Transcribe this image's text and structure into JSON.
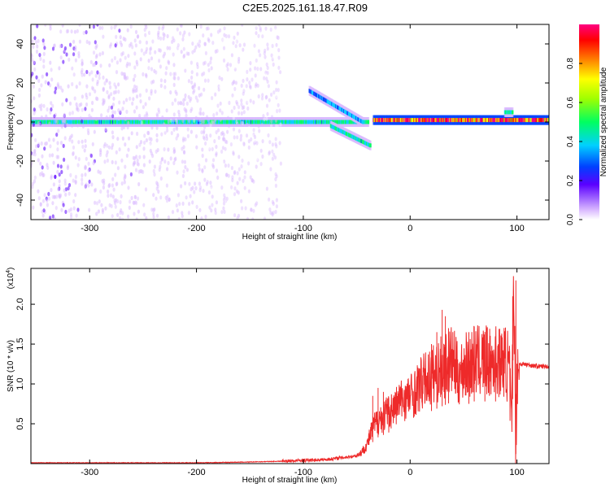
{
  "figure_title": "C2E5.2025.161.18.47.R09",
  "colors": {
    "line": "#ee2a2a",
    "frame": "#000000"
  },
  "chart_data": [
    {
      "type": "heatmap",
      "title": "C2E5.2025.161.18.47.R09",
      "xlabel": "Height of straight line (km)",
      "ylabel": "Frequency (Hz)",
      "xlim": [
        -355,
        130
      ],
      "ylim": [
        -50,
        50
      ],
      "x_ticks": [
        -300,
        -200,
        -100,
        0,
        100
      ],
      "y_ticks": [
        -40,
        -20,
        0,
        20,
        40
      ],
      "colorbar": {
        "label": "Normalized spectral amplitude",
        "range": [
          0,
          1
        ],
        "ticks": [
          "0.0",
          "0.2",
          "0.4",
          "0.6",
          "0.8"
        ],
        "tick_values": [
          0,
          0.2,
          0.4,
          0.6,
          0.8
        ]
      },
      "features": [
        {
          "x_start": -355,
          "x_end": -40,
          "frequency": 0,
          "amplitude": 0.5
        },
        {
          "x_start": -95,
          "x_end": -45,
          "frequency_start": 16,
          "frequency_end": 0,
          "amplitude": 0.4
        },
        {
          "x_start": -75,
          "x_end": -38,
          "frequency_start": -2,
          "frequency_end": -12,
          "amplitude": 0.5
        },
        {
          "x_start": -35,
          "x_end": 130,
          "frequency": 1,
          "amplitude": 0.95
        },
        {
          "x_start": 88,
          "x_end": 95,
          "frequency": 5,
          "amplitude": 0.5
        },
        {
          "x_start": -355,
          "x_end": -120,
          "frequency_range": [
            -50,
            50
          ],
          "amplitude": 0.2
        }
      ]
    },
    {
      "type": "line",
      "xlabel": "Height of straight line (km)",
      "ylabel": "SNR (10 * v/v)",
      "y_multiplier": "(x10",
      "y_multiplier_exp": "4",
      "xlim": [
        -355,
        130
      ],
      "ylim": [
        0,
        2.45
      ],
      "x_ticks": [
        -300,
        -200,
        -100,
        0,
        100
      ],
      "y_ticks": [
        0.5,
        1.0,
        1.5,
        2.0
      ],
      "y_tick_labels": [
        "0.5",
        "1.0",
        "1.5",
        "2.0"
      ],
      "series": [
        {
          "x": [
            -355,
            -300,
            -250,
            -200,
            -150,
            -120,
            -100,
            -80,
            -60,
            -50,
            -45,
            -40,
            -35,
            -30,
            -25,
            -20,
            -15,
            -10,
            -5,
            0,
            5,
            10,
            15,
            20,
            25,
            30,
            35,
            40,
            45,
            50,
            55,
            60,
            65,
            70,
            75,
            80,
            85,
            90,
            93,
            95,
            97,
            99,
            100,
            102,
            105,
            110,
            115,
            120,
            125,
            130
          ],
          "y": [
            0.01,
            0.01,
            0.01,
            0.01,
            0.02,
            0.03,
            0.04,
            0.05,
            0.08,
            0.1,
            0.15,
            0.25,
            0.45,
            0.55,
            0.6,
            0.65,
            0.7,
            0.78,
            0.82,
            0.85,
            0.9,
            1.0,
            1.05,
            1.1,
            1.15,
            1.2,
            1.25,
            1.3,
            1.1,
            1.2,
            1.25,
            1.3,
            1.28,
            1.3,
            1.25,
            1.3,
            1.27,
            1.3,
            1.1,
            0.3,
            2.4,
            0.2,
            1.2,
            1.25,
            1.25,
            1.24,
            1.23,
            1.22,
            1.22,
            1.22
          ],
          "spikes": [
            [
              -35,
              0.85
            ],
            [
              -30,
              0.95
            ],
            [
              -25,
              0.9
            ],
            [
              -20,
              0.75
            ],
            [
              20,
              1.5
            ],
            [
              25,
              1.65
            ],
            [
              30,
              1.93
            ],
            [
              33,
              1.85
            ],
            [
              36,
              1.7
            ],
            [
              55,
              1.65
            ],
            [
              60,
              1.55
            ],
            [
              70,
              1.55
            ],
            [
              80,
              1.45
            ],
            [
              96,
              2.1
            ],
            [
              99,
              2.3
            ]
          ]
        }
      ]
    }
  ]
}
